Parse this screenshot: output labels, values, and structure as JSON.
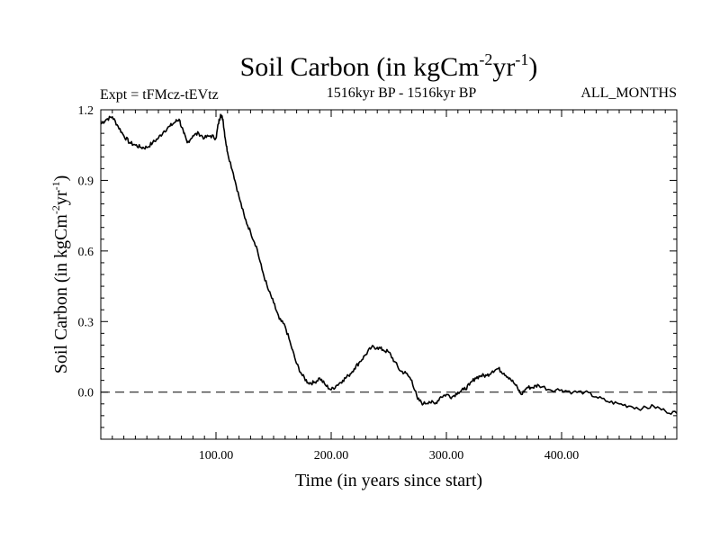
{
  "chart_data": {
    "type": "line",
    "title_main": "Soil Carbon (in kgCm",
    "title_sup1": "-2",
    "title_mid": "yr",
    "title_sup2": "-1",
    "title_end": ")",
    "subtitle_left": "Expt = tFMcz-tEVtz",
    "subtitle_center": "1516kyr BP - 1516kyr BP",
    "subtitle_right": "ALL_MONTHS",
    "xlabel": "Time (in years since start)",
    "ylabel_main": "Soil Carbon (in kgCm",
    "ylabel_sup1": "-2",
    "ylabel_mid": "yr",
    "ylabel_sup2": "-1",
    "ylabel_end": ")",
    "xlim": [
      0,
      500
    ],
    "ylim": [
      -0.2,
      1.2
    ],
    "x_ticks": [
      100,
      200,
      300,
      400
    ],
    "x_tick_labels": [
      "100.00",
      "200.00",
      "300.00",
      "400.00"
    ],
    "y_ticks": [
      0.0,
      0.3,
      0.6,
      0.9,
      1.2
    ],
    "y_tick_labels": [
      "0.0",
      "0.3",
      "0.6",
      "0.9",
      "1.2"
    ],
    "reference_line": 0.0,
    "grid": false,
    "series": [
      {
        "name": "Soil Carbon",
        "x": [
          0,
          5,
          10,
          15,
          20,
          25,
          30,
          35,
          40,
          45,
          50,
          55,
          60,
          65,
          68,
          72,
          75,
          80,
          85,
          90,
          95,
          100,
          102,
          104,
          106,
          108,
          110,
          115,
          120,
          125,
          130,
          135,
          140,
          145,
          150,
          155,
          160,
          165,
          170,
          175,
          180,
          185,
          190,
          195,
          200,
          205,
          210,
          215,
          220,
          225,
          230,
          235,
          240,
          245,
          250,
          255,
          260,
          265,
          270,
          275,
          280,
          285,
          290,
          295,
          300,
          305,
          310,
          315,
          320,
          325,
          330,
          335,
          340,
          345,
          350,
          355,
          360,
          365,
          370,
          375,
          380,
          390,
          400,
          410,
          420,
          430,
          440,
          450,
          460,
          470,
          480,
          490,
          500
        ],
        "y": [
          1.14,
          1.16,
          1.17,
          1.13,
          1.09,
          1.06,
          1.05,
          1.04,
          1.04,
          1.06,
          1.08,
          1.11,
          1.13,
          1.15,
          1.16,
          1.1,
          1.06,
          1.09,
          1.1,
          1.08,
          1.09,
          1.08,
          1.14,
          1.18,
          1.16,
          1.08,
          1.02,
          0.93,
          0.83,
          0.74,
          0.68,
          0.62,
          0.52,
          0.44,
          0.38,
          0.31,
          0.28,
          0.2,
          0.12,
          0.07,
          0.04,
          0.04,
          0.06,
          0.03,
          0.01,
          0.03,
          0.05,
          0.07,
          0.1,
          0.13,
          0.16,
          0.19,
          0.19,
          0.18,
          0.17,
          0.13,
          0.09,
          0.08,
          0.05,
          -0.03,
          -0.05,
          -0.04,
          -0.05,
          -0.02,
          -0.01,
          -0.02,
          0.0,
          0.01,
          0.03,
          0.06,
          0.07,
          0.07,
          0.09,
          0.1,
          0.08,
          0.06,
          0.03,
          -0.01,
          0.02,
          0.02,
          0.03,
          0.01,
          0.01,
          0.0,
          0.0,
          -0.02,
          -0.04,
          -0.05,
          -0.06,
          -0.07,
          -0.06,
          -0.08,
          -0.09
        ]
      }
    ]
  }
}
